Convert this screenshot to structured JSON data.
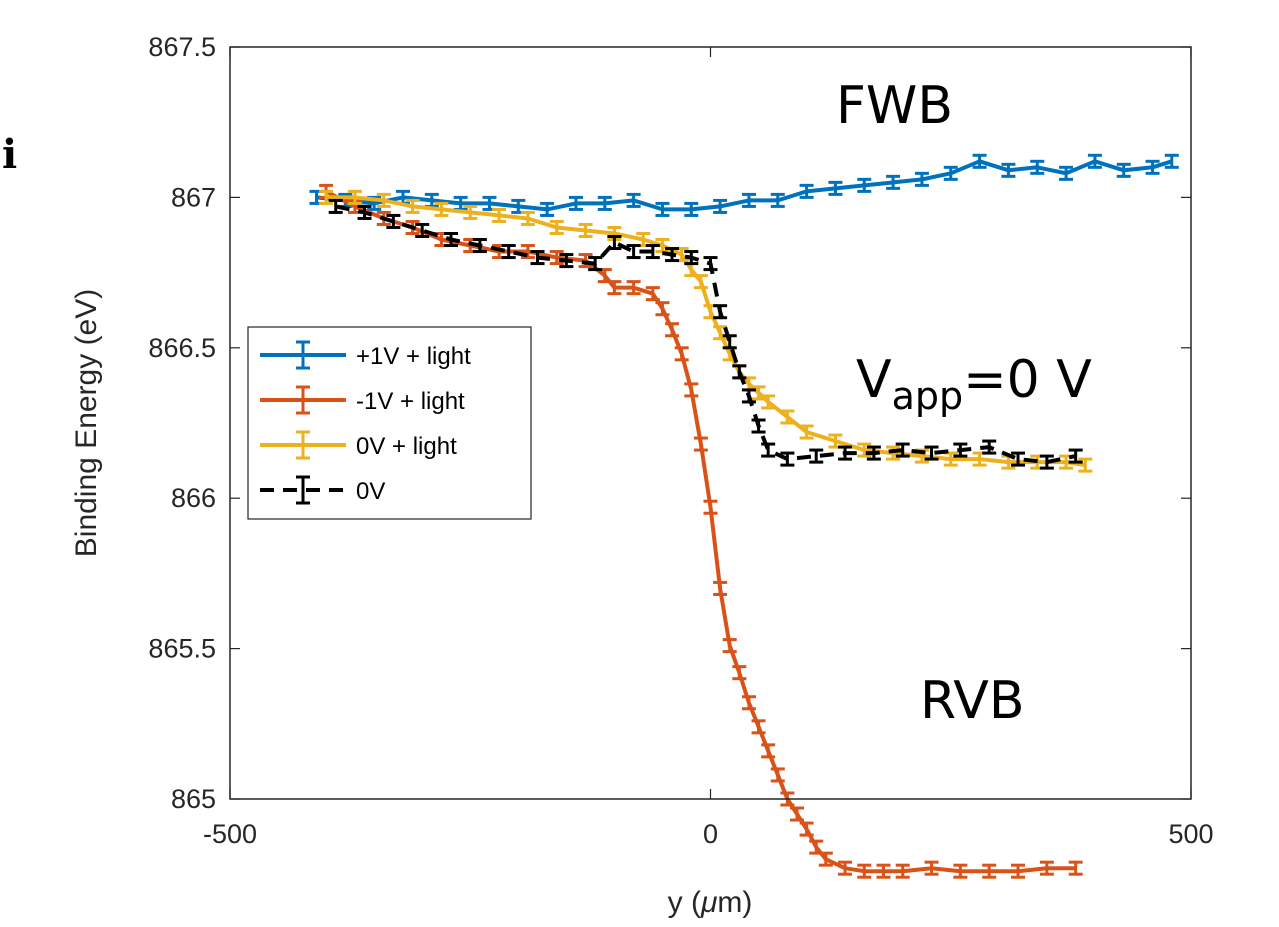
{
  "panel_letter": "i",
  "annotations": {
    "fwb": "FWB",
    "vapp_main": "V",
    "vapp_sub": "app",
    "vapp_rest": "=0 V",
    "rvb": "RVB"
  },
  "colors": {
    "blue": "#0072BD",
    "red": "#D95319",
    "yellow": "#EDB120",
    "black": "#000000"
  },
  "chart_data": {
    "type": "line",
    "xlabel": "y (μm)",
    "ylabel": "Binding Energy (eV)",
    "xlim": [
      -500,
      500
    ],
    "ylim": [
      865,
      867.5
    ],
    "xticks": [
      -500,
      0,
      500
    ],
    "xtick_labels": [
      "-500",
      "0",
      "500"
    ],
    "yticks": [
      865,
      865.5,
      866,
      866.5,
      867,
      867.5
    ],
    "ytick_labels": [
      "865",
      "865.5",
      "866",
      "866.5",
      "867",
      "867.5"
    ],
    "grid": false,
    "legend_position": "middle-left",
    "error_bars": true,
    "series": [
      {
        "name": "+1V + light",
        "color": "#0072BD",
        "dashed": false,
        "error": 0.02,
        "x": [
          -410,
          -380,
          -350,
          -320,
          -290,
          -260,
          -230,
          -200,
          -170,
          -140,
          -110,
          -80,
          -50,
          -20,
          10,
          40,
          70,
          100,
          130,
          160,
          190,
          220,
          250,
          280,
          310,
          340,
          370,
          400,
          430,
          460,
          480
        ],
        "y": [
          867.0,
          866.99,
          866.98,
          867.0,
          866.99,
          866.98,
          866.98,
          866.97,
          866.96,
          866.98,
          866.98,
          866.99,
          866.96,
          866.96,
          866.97,
          866.99,
          866.99,
          867.02,
          867.03,
          867.04,
          867.05,
          867.06,
          867.08,
          867.12,
          867.09,
          867.1,
          867.08,
          867.12,
          867.09,
          867.1,
          867.12
        ]
      },
      {
        "name": "-1V + light",
        "color": "#D95319",
        "dashed": false,
        "error": 0.02,
        "x": [
          -400,
          -370,
          -340,
          -310,
          -280,
          -250,
          -220,
          -190,
          -160,
          -130,
          -110,
          -100,
          -80,
          -60,
          -50,
          -40,
          -30,
          -20,
          -10,
          0,
          10,
          20,
          30,
          40,
          50,
          60,
          70,
          80,
          90,
          100,
          110,
          120,
          140,
          160,
          180,
          200,
          230,
          260,
          290,
          320,
          350,
          380
        ],
        "y": [
          867.02,
          866.97,
          866.93,
          866.9,
          866.86,
          866.84,
          866.82,
          866.82,
          866.8,
          866.79,
          866.74,
          866.7,
          866.7,
          866.68,
          866.63,
          866.56,
          866.48,
          866.36,
          866.18,
          865.97,
          865.7,
          865.51,
          865.42,
          865.32,
          865.24,
          865.16,
          865.08,
          865.0,
          864.95,
          864.9,
          864.84,
          864.8,
          864.77,
          864.76,
          864.76,
          864.76,
          864.77,
          864.76,
          864.76,
          864.76,
          864.77,
          864.77
        ]
      },
      {
        "name": "0V + light",
        "color": "#EDB120",
        "dashed": false,
        "error": 0.02,
        "x": [
          -400,
          -370,
          -340,
          -310,
          -280,
          -250,
          -220,
          -190,
          -160,
          -130,
          -100,
          -70,
          -50,
          -30,
          -20,
          -10,
          0,
          10,
          20,
          30,
          40,
          50,
          60,
          80,
          100,
          130,
          160,
          190,
          220,
          250,
          280,
          310,
          340,
          370,
          390
        ],
        "y": [
          867.0,
          867.0,
          866.99,
          866.97,
          866.96,
          866.95,
          866.94,
          866.93,
          866.9,
          866.89,
          866.88,
          866.86,
          866.84,
          866.81,
          866.76,
          866.72,
          866.62,
          866.55,
          866.48,
          866.42,
          866.38,
          866.35,
          866.32,
          866.27,
          866.22,
          866.19,
          866.16,
          866.15,
          866.14,
          866.13,
          866.13,
          866.12,
          866.12,
          866.12,
          866.11
        ]
      },
      {
        "name": "0V",
        "color": "#000000",
        "dashed": true,
        "error": 0.02,
        "x": [
          -390,
          -360,
          -330,
          -300,
          -270,
          -240,
          -210,
          -180,
          -150,
          -120,
          -100,
          -80,
          -60,
          -40,
          -20,
          0,
          10,
          20,
          30,
          40,
          50,
          60,
          80,
          110,
          140,
          170,
          200,
          230,
          260,
          290,
          320,
          350,
          380
        ],
        "y": [
          866.97,
          866.95,
          866.92,
          866.89,
          866.86,
          866.84,
          866.82,
          866.8,
          866.79,
          866.78,
          866.85,
          866.82,
          866.82,
          866.81,
          866.8,
          866.78,
          866.62,
          866.52,
          866.42,
          866.34,
          866.24,
          866.16,
          866.13,
          866.14,
          866.15,
          866.15,
          866.16,
          866.15,
          866.16,
          866.17,
          866.13,
          866.12,
          866.14
        ]
      }
    ]
  }
}
